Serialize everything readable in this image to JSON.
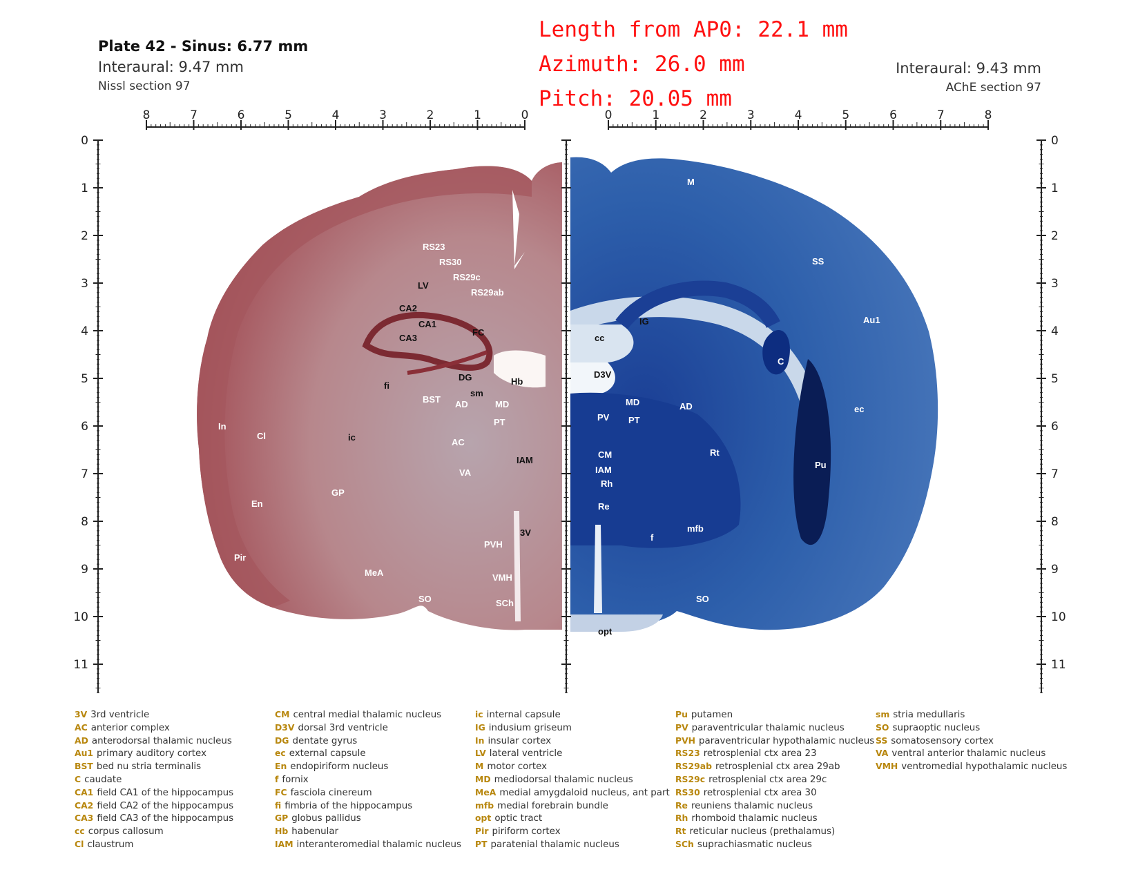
{
  "header": {
    "plate_title": "Plate 42 - Sinus: 6.77 mm",
    "left_interaural": "Interaural: 9.47 mm",
    "left_section": "Nissl section 97",
    "right_interaural": "Interaural: 9.43 mm",
    "right_section": "AChE section 97"
  },
  "coordinates": {
    "length_from_ap0": "Length from AP0: 22.1 mm",
    "azimuth": "Azimuth: 26.0 mm",
    "pitch": "Pitch: 20.05 mm"
  },
  "rulers": {
    "top_left_ticks": [
      "8",
      "7",
      "6",
      "5",
      "4",
      "3",
      "2",
      "1",
      "0"
    ],
    "top_right_ticks": [
      "0",
      "1",
      "2",
      "3",
      "4",
      "5",
      "6",
      "7",
      "8"
    ],
    "vertical_ticks": [
      "0",
      "1",
      "2",
      "3",
      "4",
      "5",
      "6",
      "7",
      "8",
      "9",
      "10",
      "11"
    ]
  },
  "colors": {
    "nissl_stain": "#b98a8c",
    "nissl_cortex": "#a8575c",
    "ache_stain": "#2f63ad",
    "ache_dark": "#0d2d80",
    "ache_light": "#c9d8ea",
    "coordinate_text": "#ff1010",
    "legend_abbr": "#b8870e"
  },
  "labels_left": {
    "rs23": "RS23",
    "rs30": "RS30",
    "rs29c": "RS29c",
    "rs29ab": "RS29ab",
    "lv": "LV",
    "ca2": "CA2",
    "ca1": "CA1",
    "ca3": "CA3",
    "fc": "FC",
    "fi": "fi",
    "dg": "DG",
    "hb": "Hb",
    "bst": "BST",
    "sm": "sm",
    "ad": "AD",
    "md": "MD",
    "pt": "PT",
    "in": "In",
    "cl": "Cl",
    "ic": "ic",
    "ac": "AC",
    "iam": "IAM",
    "va": "VA",
    "gp": "GP",
    "en": "En",
    "v3": "3V",
    "pvh": "PVH",
    "pir": "Pir",
    "mea": "MeA",
    "vmh": "VMH",
    "so": "SO",
    "sch": "SCh"
  },
  "labels_right": {
    "m": "M",
    "ss": "SS",
    "ig": "IG",
    "au1": "Au1",
    "cc": "cc",
    "c": "C",
    "d3v": "D3V",
    "md": "MD",
    "ad": "AD",
    "pv": "PV",
    "pt": "PT",
    "ec": "ec",
    "rt": "Rt",
    "cm": "CM",
    "pu": "Pu",
    "iam": "IAM",
    "rh": "Rh",
    "re": "Re",
    "mfb": "mfb",
    "f": "f",
    "so": "SO",
    "opt": "opt"
  },
  "legend": {
    "columns": [
      [
        {
          "abbr": "3V",
          "name": "3rd ventricle"
        },
        {
          "abbr": "AC",
          "name": "anterior complex"
        },
        {
          "abbr": "AD",
          "name": "anterodorsal thalamic nucleus"
        },
        {
          "abbr": "Au1",
          "name": "primary auditory cortex"
        },
        {
          "abbr": "BST",
          "name": "bed nu stria terminalis"
        },
        {
          "abbr": "C",
          "name": "caudate"
        },
        {
          "abbr": "CA1",
          "name": "field CA1 of the hippocampus"
        },
        {
          "abbr": "CA2",
          "name": "field CA2 of the hippocampus"
        },
        {
          "abbr": "CA3",
          "name": "field CA3 of the hippocampus"
        },
        {
          "abbr": "cc",
          "name": "corpus callosum"
        },
        {
          "abbr": "Cl",
          "name": "claustrum"
        }
      ],
      [
        {
          "abbr": "CM",
          "name": "central medial thalamic nucleus"
        },
        {
          "abbr": "D3V",
          "name": "dorsal 3rd ventricle"
        },
        {
          "abbr": "DG",
          "name": "dentate gyrus"
        },
        {
          "abbr": "ec",
          "name": "external capsule"
        },
        {
          "abbr": "En",
          "name": "endopiriform nucleus"
        },
        {
          "abbr": "f",
          "name": "fornix"
        },
        {
          "abbr": "FC",
          "name": "fasciola cinereum"
        },
        {
          "abbr": "fi",
          "name": "fimbria of the hippocampus"
        },
        {
          "abbr": "GP",
          "name": "globus pallidus"
        },
        {
          "abbr": "Hb",
          "name": "habenular"
        },
        {
          "abbr": "IAM",
          "name": "interanteromedial thalamic nucleus"
        }
      ],
      [
        {
          "abbr": "ic",
          "name": "internal capsule"
        },
        {
          "abbr": "IG",
          "name": "indusium griseum"
        },
        {
          "abbr": "In",
          "name": "insular cortex"
        },
        {
          "abbr": "LV",
          "name": "lateral ventricle"
        },
        {
          "abbr": "M",
          "name": "motor cortex"
        },
        {
          "abbr": "MD",
          "name": "mediodorsal thalamic nucleus"
        },
        {
          "abbr": "MeA",
          "name": "medial amygdaloid nucleus, ant part"
        },
        {
          "abbr": "mfb",
          "name": "medial forebrain bundle"
        },
        {
          "abbr": "opt",
          "name": "optic tract"
        },
        {
          "abbr": "Pir",
          "name": "piriform cortex"
        },
        {
          "abbr": "PT",
          "name": "paratenial thalamic nucleus"
        }
      ],
      [
        {
          "abbr": "Pu",
          "name": "putamen"
        },
        {
          "abbr": "PV",
          "name": "paraventricular thalamic nucleus"
        },
        {
          "abbr": "PVH",
          "name": "paraventricular hypothalamic nucleus"
        },
        {
          "abbr": "RS23",
          "name": "retrosplenial ctx area 23"
        },
        {
          "abbr": "RS29ab",
          "name": "retrosplenial ctx area 29ab"
        },
        {
          "abbr": "RS29c",
          "name": "retrosplenial ctx area 29c"
        },
        {
          "abbr": "RS30",
          "name": "retrosplenial ctx area 30"
        },
        {
          "abbr": "Re",
          "name": "reuniens thalamic nucleus"
        },
        {
          "abbr": "Rh",
          "name": "rhomboid thalamic nucleus"
        },
        {
          "abbr": "Rt",
          "name": "reticular nucleus (prethalamus)"
        },
        {
          "abbr": "SCh",
          "name": "suprachiasmatic nucleus"
        }
      ],
      [
        {
          "abbr": "sm",
          "name": "stria medullaris"
        },
        {
          "abbr": "SO",
          "name": "supraoptic nucleus"
        },
        {
          "abbr": "SS",
          "name": "somatosensory cortex"
        },
        {
          "abbr": "VA",
          "name": "ventral anterior thalamic nucleus"
        },
        {
          "abbr": "VMH",
          "name": "ventromedial hypothalamic nucleus"
        }
      ]
    ]
  }
}
